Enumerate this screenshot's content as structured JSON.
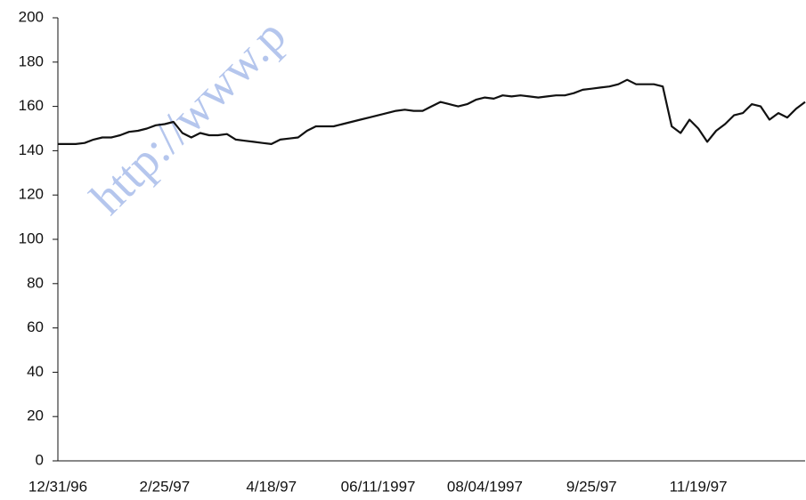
{
  "chart_data": {
    "type": "line",
    "watermark": "http://www.p",
    "categories": [
      "12/31/96",
      null,
      null,
      null,
      null,
      null,
      null,
      null,
      null,
      null,
      null,
      null,
      "2/25/97",
      null,
      null,
      null,
      null,
      null,
      null,
      null,
      null,
      null,
      null,
      null,
      "4/18/97",
      null,
      null,
      null,
      null,
      null,
      null,
      null,
      null,
      null,
      null,
      null,
      "06/11/1997",
      null,
      null,
      null,
      null,
      null,
      null,
      null,
      null,
      null,
      null,
      null,
      "08/04/1997",
      null,
      null,
      null,
      null,
      null,
      null,
      null,
      null,
      null,
      null,
      null,
      "9/25/97",
      null,
      null,
      null,
      null,
      null,
      null,
      null,
      null,
      null,
      null,
      null,
      "11/19/97",
      null,
      null,
      null,
      null,
      null,
      null,
      null,
      null,
      null,
      null,
      null,
      null
    ],
    "values": [
      143,
      143,
      143,
      143.5,
      145,
      146,
      146,
      147,
      148.5,
      149,
      150,
      151.5,
      152,
      153,
      148,
      146,
      148,
      147,
      147,
      147.5,
      145,
      144.5,
      144,
      143.5,
      143,
      145,
      145.5,
      146,
      149,
      151,
      151,
      151,
      152,
      153,
      154,
      155,
      156,
      157,
      158,
      158.5,
      158,
      158,
      160,
      162,
      161,
      160,
      161,
      163,
      164,
      163.5,
      165,
      164.5,
      165,
      164.5,
      164,
      164.5,
      165,
      165,
      166,
      167.5,
      168,
      168.5,
      169,
      170,
      172,
      170,
      170,
      170,
      169,
      151,
      148,
      154,
      150,
      144,
      149,
      152,
      156,
      157,
      161,
      160,
      154,
      157,
      155,
      159,
      162
    ],
    "color": "#111111",
    "ylim": [
      0,
      200
    ],
    "yticks": [
      0,
      20,
      40,
      60,
      80,
      100,
      120,
      140,
      160,
      180,
      200
    ],
    "grid": false
  }
}
